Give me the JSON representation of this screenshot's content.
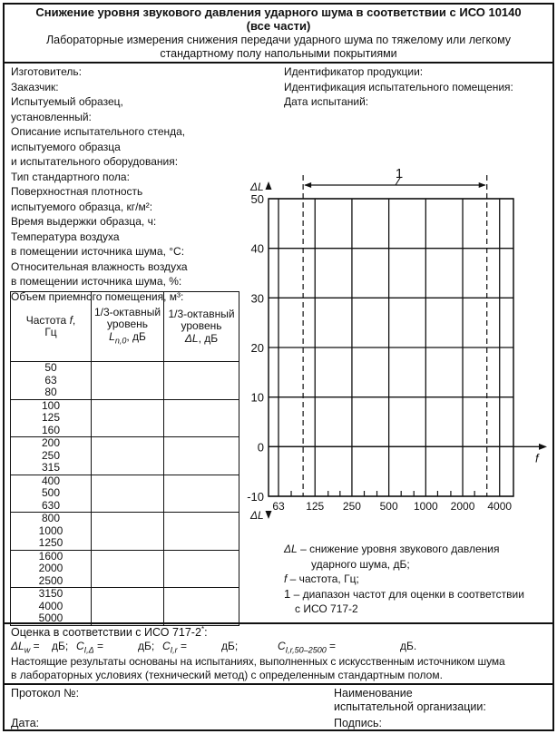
{
  "header": {
    "title": "Снижение уровня звукового давления ударного шума в соответствии с ИСО 10140",
    "title_line2": "(все части)",
    "subtitle": "Лабораторные измерения снижения передачи ударного шума по тяжелому или легкому",
    "subtitle_line2": "стандартному полу напольными покрытиями"
  },
  "left_fields": [
    "Изготовитель:",
    "Заказчик:",
    "Испытуемый образец,",
    "установленный:",
    "Описание испытательного стенда,",
    "испытуемого образца",
    "и испытательного оборудования:",
    "Тип стандартного пола:",
    "Поверхностная плотность",
    "испытуемого образца, кг/м²:",
    "Время выдержки образца, ч:",
    "Температура воздуха",
    "в помещении источника шума, °C:",
    "Относительная влажность воздуха",
    "в помещении источника шума, %:",
    "Объем приемного помещения, м³:"
  ],
  "right_fields": [
    "Идентификатор продукции:",
    "Идентификация испытательного помещения:",
    "Дата испытаний:"
  ],
  "table": {
    "headers": [
      "Частота f, Гц",
      "1/3-октавный уровень Ln,0, дБ",
      "1/3-октавный уровень ΔL, дБ"
    ],
    "h1a": "Частота ",
    "h1b": "f",
    "h1c": ",",
    "h1d": "Гц",
    "h2a": "1/3-октавный",
    "h2b": "уровень",
    "h2c": "L",
    "h2d": "n,0",
    "h2e": ", дБ",
    "h3a": "1/3-октавный",
    "h3b": "уровень",
    "h3c": "ΔL",
    "h3d": ", дБ",
    "groups": [
      [
        "50",
        "63",
        "80"
      ],
      [
        "100",
        "125",
        "160"
      ],
      [
        "200",
        "250",
        "315"
      ],
      [
        "400",
        "500",
        "630"
      ],
      [
        "800",
        "1000",
        "1250"
      ],
      [
        "1600",
        "2000",
        "2500"
      ],
      [
        "3150",
        "4000",
        "5000"
      ]
    ]
  },
  "chart_data": {
    "type": "line",
    "title": "",
    "xlabel": "f",
    "ylabel": "ΔL",
    "x_scale": "log",
    "x_ticks": [
      "63",
      "125",
      "250",
      "500",
      "1000",
      "2000",
      "4000"
    ],
    "x_tick_values": [
      63,
      125,
      250,
      500,
      1000,
      2000,
      4000
    ],
    "y_ticks": [
      "50",
      "40",
      "30",
      "20",
      "10",
      "0",
      "-10"
    ],
    "ylim": [
      -10,
      50
    ],
    "grid": true,
    "series": [],
    "evaluation_range": [
      100,
      3150
    ],
    "evaluation_range_label": "1",
    "bottom_ylabel": "ΔL"
  },
  "legend": [
    {
      "key": "ΔL",
      "text": " – снижение уровня звукового давления",
      "text2": "ударного шума, дБ;"
    },
    {
      "key": "f",
      "text": " – частота, Гц;"
    },
    {
      "key": "1",
      "text": " – диапазон частот для оценки в соответствии",
      "text2": "с ИСО 717-2"
    }
  ],
  "evaluation": {
    "heading": "Оценка в соответствии с ИСО 717-2",
    "star": "*",
    "colon": ":",
    "lw": "ΔL",
    "lw_sub": "w",
    "eq": " = ",
    "db": "дБ;",
    "c1": "C",
    "c1_sub": "I,Δ",
    "c2": "C",
    "c2_sub": "I,r",
    "c3": "C",
    "c3_sub": "I,r,50–2500",
    "db_end": "дБ.",
    "note1": "Настоящие результаты основаны на испытаниях, выполненных с искусственным источником шума",
    "note2": "в лабораторных условиях (технический метод) с определенным стандартным полом."
  },
  "footer": {
    "protocol": "Протокол №:",
    "date": "Дата:",
    "org1": "Наименование",
    "org2": "испытательной организации:",
    "signature": "Подпись:"
  }
}
